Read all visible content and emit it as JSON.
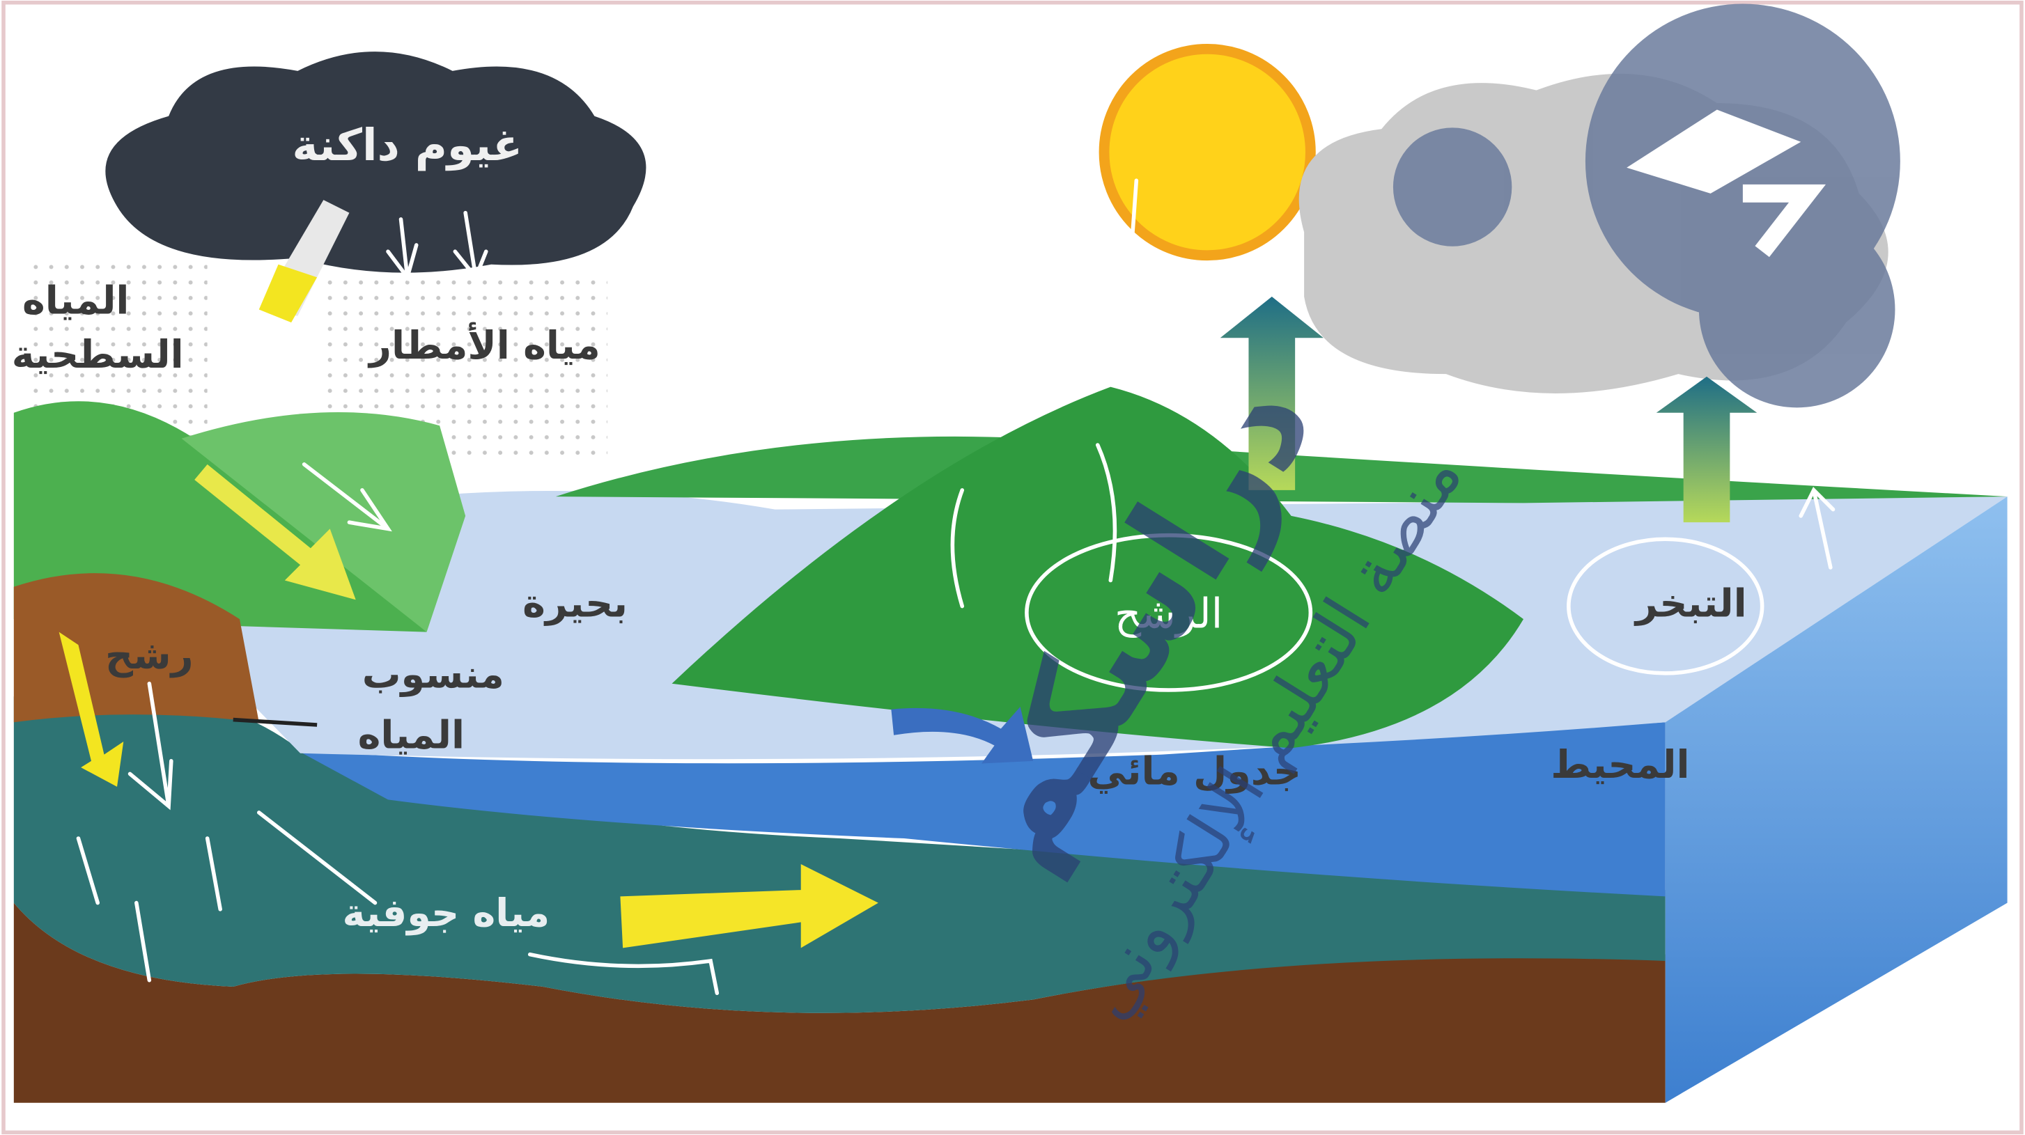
{
  "labels": {
    "dark_clouds": "غيوم داكنة",
    "surface_water": [
      "المياه",
      "السطحية"
    ],
    "rain_water": "مياه الأمطار",
    "lake": "بحيرة",
    "infiltration": "رشح",
    "water_table": [
      "منسوب",
      "المياه"
    ],
    "stream": "جدول مائي",
    "ocean": "المحيط",
    "evaporation": "التبخر",
    "groundwater": "مياه جوفية"
  },
  "annotation": "الرشح",
  "watermark": {
    "brand": "دراسكم",
    "tagline": "منصة التعليم الإلكتروني"
  }
}
